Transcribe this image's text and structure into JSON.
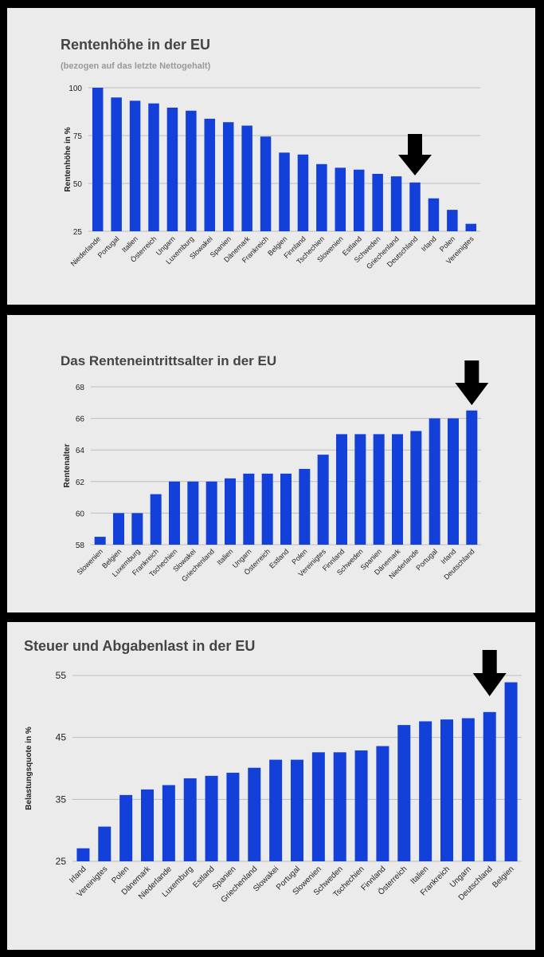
{
  "chart_data": [
    {
      "type": "bar",
      "title": "Rentenhöhe in der EU",
      "subtitle": "(bezogen auf das letzte Nettogehalt)",
      "xlabel": "",
      "ylabel": "Rentenhöhe in %",
      "ylim": [
        25,
        100
      ],
      "yticks": [
        "100",
        "75",
        "50",
        "25"
      ],
      "ytick_values": [
        100,
        75,
        50,
        25
      ],
      "grid": true,
      "bar_color": "#1240d8",
      "highlight": "Deutschland",
      "categories": [
        "Niederlande",
        "Portugal",
        "Italien",
        "Österreich",
        "Ungarn",
        "Luxemburg",
        "Slowakei",
        "Spanien",
        "Dänemark",
        "Frankreich",
        "Belgien",
        "Finnland",
        "Tschechien",
        "Slowenien",
        "Estland",
        "Schweden",
        "Griechenland",
        "Deutschland",
        "Irland",
        "Polen",
        "Vereinigtes"
      ],
      "values": [
        100,
        94.9,
        93.2,
        91.8,
        89.6,
        88,
        83.8,
        82,
        80.2,
        74.5,
        66.1,
        65.1,
        60.1,
        58.2,
        57.2,
        55,
        53.7,
        50.5,
        42.2,
        36.2,
        28.9
      ]
    },
    {
      "type": "bar",
      "title": "Das Renteneintrittsalter in der EU",
      "xlabel": "",
      "ylabel": "Rentenalter",
      "ylim": [
        58,
        68
      ],
      "yticks": [
        "68",
        "66",
        "64",
        "62",
        "60",
        "58"
      ],
      "ytick_values": [
        68,
        66,
        64,
        62,
        60,
        58
      ],
      "grid": true,
      "bar_color": "#1240d8",
      "highlight": "Deutschland",
      "categories": [
        "Slowenien",
        "Belgien",
        "Luxemburg",
        "Frankreich",
        "Tschechien",
        "Slowakei",
        "Griechenland",
        "Italien",
        "Ungarn",
        "Österreich",
        "Estland",
        "Polen",
        "Vereinigtes",
        "Finnland",
        "Schweden",
        "Spanien",
        "Dänemark",
        "Niederlande",
        "Portugal",
        "Irland",
        "Deutschland"
      ],
      "values": [
        58.5,
        60,
        60,
        61.2,
        62,
        62,
        62,
        62.2,
        62.5,
        62.5,
        62.5,
        62.8,
        63.7,
        65,
        65,
        65,
        65,
        65.2,
        66,
        66,
        66.5
      ]
    },
    {
      "type": "bar",
      "title": "Steuer und Abgabenlast in der EU",
      "xlabel": "",
      "ylabel": "Belastungsquote in %",
      "ylim": [
        25,
        55
      ],
      "yticks": [
        "55",
        "45",
        "35",
        "25"
      ],
      "ytick_values": [
        55,
        45,
        35,
        25
      ],
      "grid": true,
      "bar_color": "#1240d8",
      "highlight": "Deutschland",
      "categories": [
        "Irland",
        "Vereinigtes",
        "Polen",
        "Dänemark",
        "Niederlande",
        "Luxemburg",
        "Estland",
        "Spanien",
        "Griechenland",
        "Slowakei",
        "Portugal",
        "Slowenien",
        "Schweden",
        "Tschechien",
        "Finnland",
        "Österreich",
        "Italien",
        "Frankreich",
        "Ungarn",
        "Deutschland",
        "Belgien"
      ],
      "values": [
        27.1,
        30.6,
        35.7,
        36.6,
        37.3,
        38.4,
        38.8,
        39.3,
        40.1,
        41.4,
        41.4,
        42.6,
        42.6,
        42.9,
        43.6,
        47,
        47.6,
        47.9,
        48.1,
        49.1,
        53.9
      ]
    }
  ]
}
